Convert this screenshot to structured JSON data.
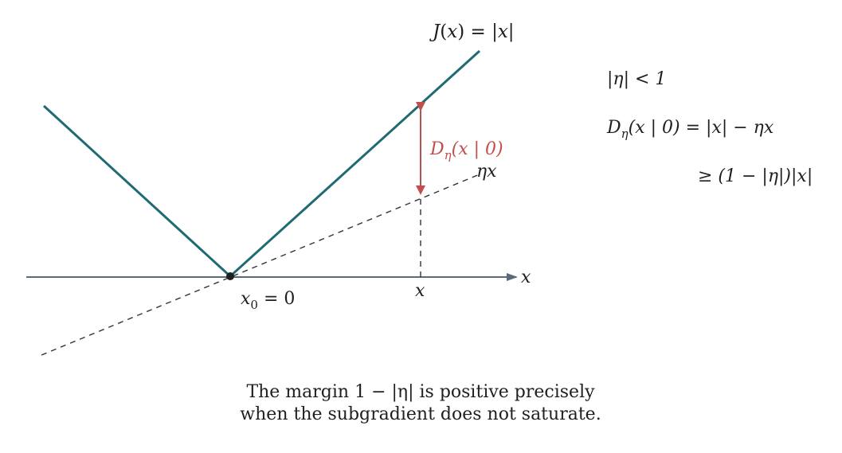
{
  "colors": {
    "curve": "#1f6b73",
    "axis": "#5a6a78",
    "tangent": "#333333",
    "gap": "#c0504d",
    "text": "#1f1f1f"
  },
  "labels": {
    "curve_fn": "J",
    "curve_arg": "x",
    "curve_rhs": "= |x|",
    "tangent_label": "ηx",
    "gap_D": "D",
    "gap_sub": "η",
    "gap_arg": "(x | 0)",
    "axis_x": "x",
    "x0_base": "x",
    "x0_sub": "0",
    "x0_rhs": " = 0",
    "xmark": "x"
  },
  "side": {
    "cond": "|η| < 1",
    "line1_D": "D",
    "line1_sub": "η",
    "line1_rest": "(x | 0) = |x| − ηx",
    "line2": "≥ (1 − |η|)|x|"
  },
  "caption": {
    "line1": "The margin 1  −  |η| is positive precisely",
    "line2": "when the subgradient does not saturate."
  }
}
